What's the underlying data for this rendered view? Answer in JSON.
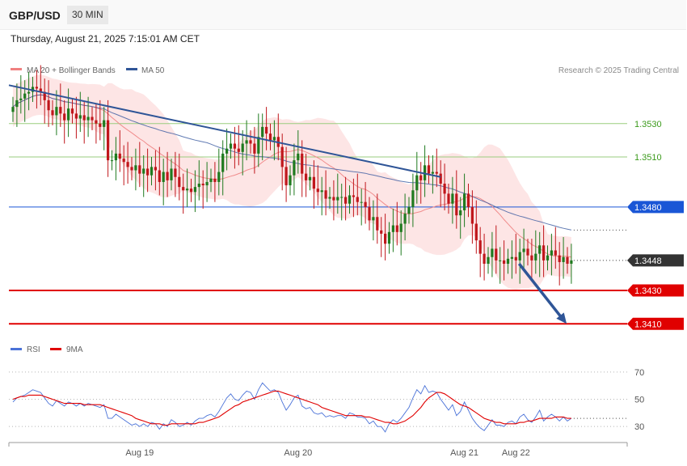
{
  "header": {
    "pair": "GBP/USD",
    "timeframe": "30 MIN"
  },
  "datetime": "Thursday, August 21, 2025 7:15:01 AM CET",
  "credit": "Research © 2025 Trading Central",
  "legend_top": [
    {
      "label": "MA 20 + Bollinger Bands",
      "color": "#f08080"
    },
    {
      "label": "MA 50",
      "color": "#2f5597"
    }
  ],
  "legend_bottom": [
    {
      "label": "RSI",
      "color": "#4a72d8"
    },
    {
      "label": "9MA",
      "color": "#e00000"
    }
  ],
  "colors": {
    "up": "#1f7a1f",
    "down": "#c0161b",
    "band": "#fde0e0",
    "ma20": "#f08c8c",
    "ma50": "#3a5aa0",
    "trend": "#2f5597",
    "support": "#e00000",
    "resistance": "#1a56d6",
    "target": "#9acd7f",
    "current": "#333333"
  },
  "chart_data": [
    {
      "type": "candlestick",
      "title": "GBP/USD",
      "timeframe": "30 MIN",
      "x_ticks": [
        "Aug 19",
        "Aug 20",
        "Aug 21",
        "Aug 22"
      ],
      "x_tick_index": [
        32,
        72,
        114,
        127
      ],
      "ylim": [
        1.3398,
        1.3558
      ],
      "levels": [
        {
          "value": 1.353,
          "label": "1.3530",
          "kind": "target"
        },
        {
          "value": 1.351,
          "label": "1.3510",
          "kind": "target"
        },
        {
          "value": 1.348,
          "label": "1.3480",
          "kind": "resistance"
        },
        {
          "value": 1.3448,
          "label": "1.3448",
          "kind": "current"
        },
        {
          "value": 1.343,
          "label": "1.3430",
          "kind": "support"
        },
        {
          "value": 1.341,
          "label": "1.3410",
          "kind": "support"
        }
      ],
      "trendline": [
        {
          "i": 0,
          "v": 1.3553
        },
        {
          "i": 108,
          "v": 1.3498
        }
      ],
      "forecast_arrow": [
        {
          "i": 127,
          "v": 1.3446
        },
        {
          "i": 139,
          "v": 1.341
        }
      ],
      "closes": [
        1.354,
        1.3544,
        1.3545,
        1.3548,
        1.3549,
        1.3552,
        1.3551,
        1.3549,
        1.3544,
        1.3538,
        1.3535,
        1.354,
        1.3536,
        1.3532,
        1.3539,
        1.3536,
        1.3533,
        1.3535,
        1.3532,
        1.3534,
        1.3532,
        1.353,
        1.3528,
        1.3532,
        1.3508,
        1.3508,
        1.3512,
        1.3509,
        1.3507,
        1.3504,
        1.3502,
        1.3505,
        1.35,
        1.3503,
        1.3499,
        1.3504,
        1.3502,
        1.3495,
        1.3501,
        1.3496,
        1.3503,
        1.3498,
        1.3492,
        1.349,
        1.3491,
        1.3489,
        1.3492,
        1.3494,
        1.3493,
        1.3495,
        1.3497,
        1.3495,
        1.3501,
        1.3512,
        1.3515,
        1.3518,
        1.3515,
        1.3513,
        1.3518,
        1.352,
        1.3518,
        1.3512,
        1.3522,
        1.3528,
        1.3524,
        1.352,
        1.3522,
        1.3516,
        1.3504,
        1.3493,
        1.3499,
        1.3508,
        1.3512,
        1.35,
        1.3496,
        1.3498,
        1.3491,
        1.3489,
        1.349,
        1.3485,
        1.3486,
        1.3484,
        1.3486,
        1.3486,
        1.3482,
        1.3487,
        1.3486,
        1.3483,
        1.3483,
        1.348,
        1.3472,
        1.3474,
        1.3466,
        1.3464,
        1.3458,
        1.3465,
        1.3469,
        1.3465,
        1.347,
        1.3476,
        1.348,
        1.349,
        1.3499,
        1.3496,
        1.3505,
        1.35,
        1.3501,
        1.35,
        1.3494,
        1.3488,
        1.3482,
        1.3488,
        1.3475,
        1.3478,
        1.3488,
        1.348,
        1.347,
        1.346,
        1.3452,
        1.3446,
        1.345,
        1.3455,
        1.3448,
        1.3448,
        1.3446,
        1.3449,
        1.345,
        1.3448,
        1.3453,
        1.3455,
        1.3451,
        1.3448,
        1.3452,
        1.3457,
        1.3448,
        1.3451,
        1.3454,
        1.3451,
        1.3447,
        1.345,
        1.3446,
        1.3448
      ]
    },
    {
      "type": "line",
      "title": "RSI",
      "ylim": [
        20,
        80
      ],
      "y_ticks": [
        70,
        50,
        30
      ],
      "series": [
        {
          "name": "RSI",
          "values": [
            48,
            51,
            52,
            53,
            55,
            57,
            56,
            55,
            51,
            47,
            45,
            49,
            47,
            45,
            48,
            47,
            45,
            47,
            45,
            47,
            46,
            45,
            44,
            46,
            36,
            36,
            39,
            37,
            35,
            33,
            31,
            32,
            30,
            32,
            30,
            33,
            32,
            28,
            32,
            30,
            35,
            33,
            30,
            31,
            33,
            31,
            34,
            36,
            36,
            38,
            39,
            37,
            41,
            46,
            51,
            54,
            50,
            49,
            53,
            56,
            55,
            50,
            57,
            62,
            59,
            56,
            57,
            55,
            48,
            42,
            46,
            51,
            53,
            45,
            43,
            44,
            40,
            39,
            40,
            37,
            38,
            37,
            38,
            38,
            36,
            40,
            39,
            37,
            37,
            36,
            32,
            34,
            30,
            30,
            26,
            32,
            35,
            33,
            36,
            40,
            44,
            51,
            57,
            54,
            60,
            55,
            56,
            55,
            50,
            46,
            42,
            46,
            38,
            41,
            48,
            42,
            36,
            32,
            29,
            27,
            31,
            35,
            31,
            31,
            30,
            33,
            34,
            32,
            37,
            39,
            35,
            33,
            37,
            42,
            34,
            37,
            39,
            37,
            34,
            37,
            34,
            36
          ]
        },
        {
          "name": "9MA",
          "values": [
            50,
            51,
            52,
            52,
            53,
            53,
            53,
            53,
            52,
            51,
            50,
            49,
            48,
            47,
            47,
            47,
            47,
            47,
            46,
            46,
            46,
            46,
            46,
            45,
            44,
            43,
            42,
            41,
            40,
            39,
            38,
            36,
            35,
            34,
            33,
            32,
            32,
            32,
            31,
            31,
            32,
            32,
            32,
            32,
            32,
            32,
            32,
            33,
            33,
            34,
            35,
            36,
            37,
            39,
            41,
            43,
            45,
            46,
            48,
            49,
            50,
            51,
            52,
            53,
            54,
            55,
            56,
            56,
            55,
            54,
            53,
            52,
            51,
            50,
            49,
            48,
            47,
            46,
            44,
            43,
            42,
            41,
            40,
            39,
            38,
            38,
            38,
            38,
            38,
            37,
            37,
            36,
            35,
            34,
            33,
            33,
            32,
            32,
            33,
            34,
            36,
            38,
            41,
            44,
            48,
            51,
            53,
            55,
            55,
            54,
            52,
            50,
            48,
            46,
            45,
            44,
            42,
            40,
            38,
            36,
            35,
            34,
            33,
            33,
            32,
            32,
            32,
            32,
            33,
            33,
            34,
            34,
            35,
            36,
            36,
            36,
            36,
            37,
            37,
            37,
            36,
            36
          ]
        }
      ]
    }
  ]
}
